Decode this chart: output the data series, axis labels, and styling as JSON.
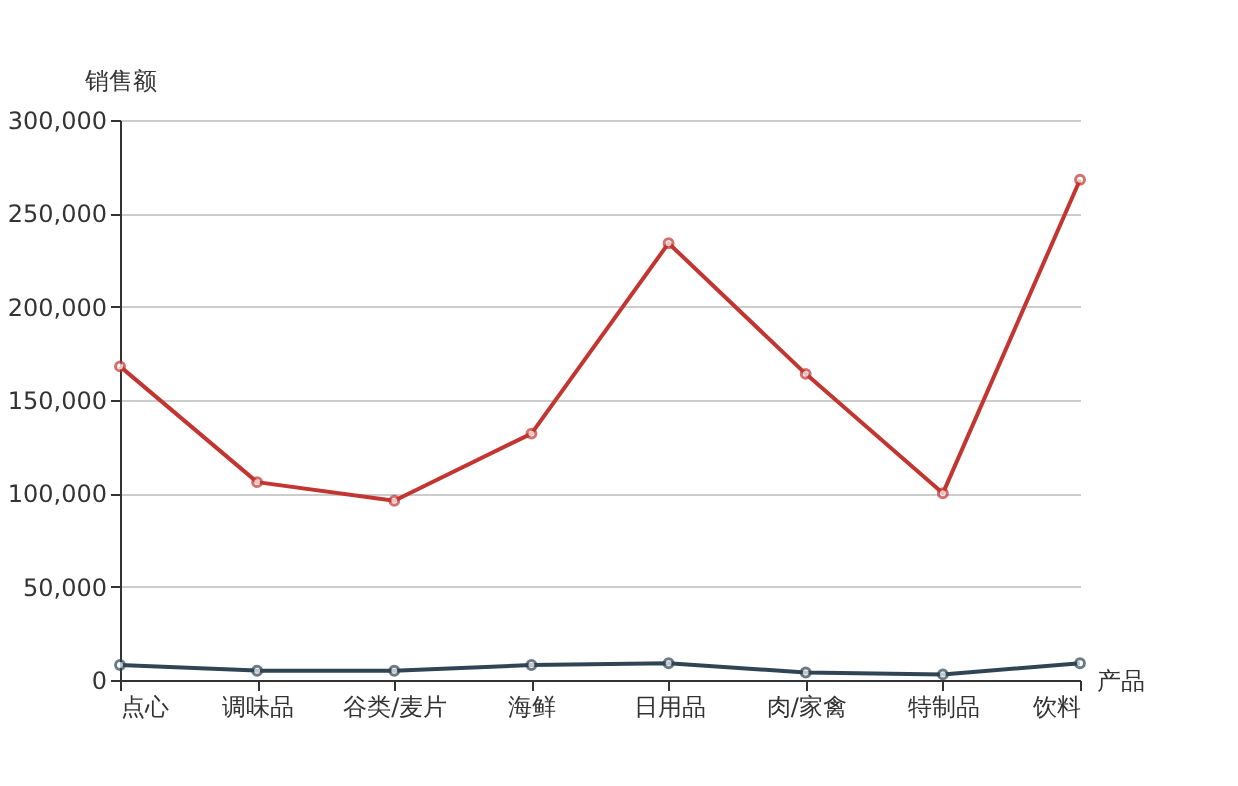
{
  "chart_data": {
    "type": "line",
    "xlabel": "产品",
    "ylabel": "销售额",
    "categories": [
      "点心",
      "调味品",
      "谷类/麦片",
      "海鲜",
      "日用品",
      "肉/家禽",
      "特制品",
      "饮料"
    ],
    "series": [
      {
        "color": "#c23531",
        "values": [
          168000,
          106000,
          96000,
          132000,
          234000,
          164000,
          100000,
          268000
        ]
      },
      {
        "color": "#2f4554",
        "values": [
          8000,
          5000,
          5000,
          8000,
          9000,
          4000,
          3000,
          9000
        ]
      }
    ],
    "ylim": [
      0,
      300000
    ],
    "yticks": [
      0,
      {
        "value": 50000,
        "label": "50,000"
      },
      {
        "value": 100000,
        "label": "100,000"
      },
      {
        "value": 150000,
        "label": "150,000"
      },
      {
        "value": 200000,
        "label": "200,000"
      },
      {
        "value": 250000,
        "label": "250,000"
      },
      {
        "value": 300000,
        "label": "300,000"
      }
    ],
    "grid": "y",
    "marker": "circle",
    "line_style": "solid"
  }
}
